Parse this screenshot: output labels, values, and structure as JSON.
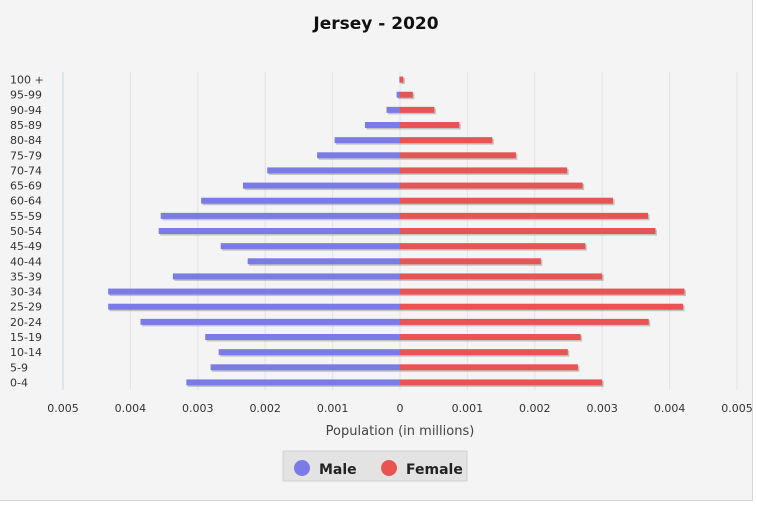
{
  "chart_data": {
    "type": "bar",
    "orientation": "horizontal",
    "title": "Jersey - 2020",
    "xlabel": "Population (in millions)",
    "ylabel": "",
    "xlim": [
      -0.005,
      0.005
    ],
    "x_tick_values": [
      -0.005,
      -0.004,
      -0.003,
      -0.002,
      -0.001,
      0,
      0.001,
      0.002,
      0.003,
      0.004,
      0.005
    ],
    "x_tick_labels": [
      "0.005",
      "0.004",
      "0.003",
      "0.002",
      "0.001",
      "0",
      "0.001",
      "0.002",
      "0.003",
      "0.004",
      "0.005"
    ],
    "categories": [
      "100 +",
      "95-99",
      "90-94",
      "85-89",
      "80-84",
      "75-79",
      "70-74",
      "65-69",
      "60-64",
      "55-59",
      "50-54",
      "45-49",
      "40-44",
      "35-39",
      "30-34",
      "25-29",
      "20-24",
      "15-19",
      "10-14",
      "5-9",
      "0-4"
    ],
    "grid": true,
    "legend_position": "bottom",
    "series": [
      {
        "name": "Male",
        "color": "#7b7be8",
        "values": [
          1e-05,
          5e-05,
          0.0002,
          0.00052,
          0.00097,
          0.00123,
          0.00197,
          0.00233,
          0.00295,
          0.00355,
          0.00358,
          0.00266,
          0.00226,
          0.00337,
          0.00433,
          0.00433,
          0.00385,
          0.00289,
          0.00269,
          0.00281,
          0.00317
        ]
      },
      {
        "name": "Female",
        "color": "#e85454",
        "values": [
          5e-05,
          0.00019,
          0.00051,
          0.00088,
          0.00137,
          0.00172,
          0.00248,
          0.00271,
          0.00316,
          0.00368,
          0.00379,
          0.00275,
          0.00209,
          0.003,
          0.00422,
          0.0042,
          0.00369,
          0.00268,
          0.00249,
          0.00264,
          0.003
        ]
      }
    ]
  }
}
